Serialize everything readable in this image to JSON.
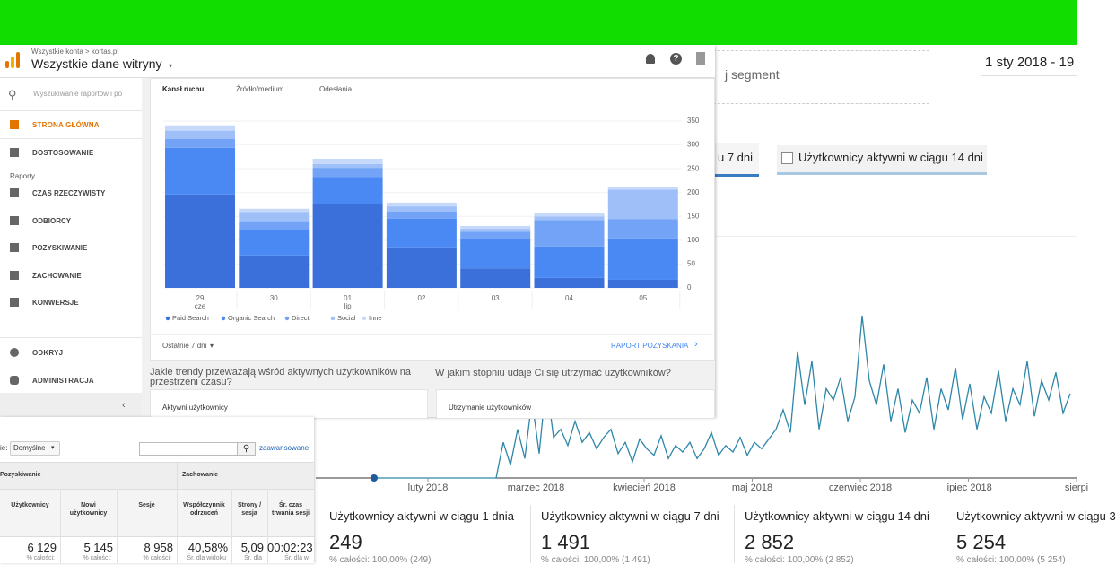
{
  "background": {
    "segment": "j segment",
    "date_range": "1 sty 2018 - 19",
    "tab_active": "u 7 dni",
    "tab_14": "Użytkownicy aktywni w ciągu 14 dni"
  },
  "stats": [
    {
      "label": "Użytkownicy aktywni w ciągu 1 dnia",
      "value": "249",
      "sub": "% całości: 100,00% (249)"
    },
    {
      "label": "Użytkownicy aktywni w ciągu 7 dni",
      "value": "1 491",
      "sub": "% całości: 100,00% (1 491)"
    },
    {
      "label": "Użytkownicy aktywni w ciągu 14 dni",
      "value": "2 852",
      "sub": "% całości: 100,00% (2 852)"
    },
    {
      "label": "Użytkownicy aktywni w ciągu 3",
      "value": "5 254",
      "sub": "% całości: 100,00% (5 254)"
    }
  ],
  "ga_header": {
    "breadcrumb": "Wszystkie konta > kortas.pl",
    "property": "Wszystkie dane witryny"
  },
  "sidebar": {
    "search": "Wyszukiwanie raportów i po",
    "home": "STRONA GŁÓWNA",
    "customize": "DOSTOSOWANIE",
    "reports": "Raporty",
    "items": [
      "CZAS RZECZYWISTY",
      "ODBIORCY",
      "POZYSKIWANIE",
      "ZACHOWANIE",
      "KONWERSJE"
    ],
    "discover": "ODKRYJ",
    "admin": "ADMINISTRACJA"
  },
  "card": {
    "tabs": [
      "Kanał ruchu",
      "Źródło/medium",
      "Odesłania"
    ],
    "period": "Ostatnie 7 dni",
    "report_link": "RAPORT POZYSKANIA"
  },
  "questions": {
    "q1": "Jakie trendy przeważają wśród aktywnych użytkowników na przestrzeni czasu?",
    "q2": "W jakim stopniu udaje Ci się utrzymać użytkowników?",
    "card1": "Aktywni użytkownicy",
    "card2": "Utrzymanie użytkowników"
  },
  "table": {
    "view_label": "ie:",
    "view_value": "Domyślne",
    "advanced": "zaawansowane",
    "group1": "Pozyskiwanie",
    "group2": "Zachowanie",
    "headers": [
      "Użytkownicy",
      "Nowi użytkownicy",
      "Sesje",
      "Współczynnik odrzuceń",
      "Strony / sesja",
      "Śr. czas trwania sesji"
    ],
    "values": [
      "6 129",
      "5 145",
      "8 958",
      "40,58%",
      "5,09",
      "00:02:23"
    ],
    "subs": [
      "% całości:",
      "% całości:",
      "% całości:",
      "Śr. dla widoku",
      "Śr. dla",
      "Śr. dla w"
    ]
  },
  "chart_data": [
    {
      "type": "stacked-bar",
      "categories": [
        "29",
        "30",
        "01",
        "02",
        "03",
        "04",
        "05"
      ],
      "month_labels": [
        "cze",
        null,
        "lip",
        null,
        null,
        null,
        null
      ],
      "series": [
        {
          "name": "Paid Search",
          "color": "#3b6fd9",
          "values": [
            196,
            68,
            175,
            85,
            41,
            21,
            17
          ]
        },
        {
          "name": "Organic Search",
          "color": "#4a89f3",
          "values": [
            98,
            53,
            58,
            60,
            62,
            66,
            87
          ]
        },
        {
          "name": "Direct",
          "color": "#73a3f6",
          "values": [
            19,
            19,
            19,
            15,
            15,
            55,
            40
          ]
        },
        {
          "name": "Social",
          "color": "#9fbff8",
          "values": [
            17,
            19,
            8,
            11,
            6,
            8,
            62
          ]
        },
        {
          "name": "Inne",
          "color": "#c6d9fb",
          "values": [
            11,
            7,
            11,
            8,
            6,
            8,
            6
          ]
        }
      ],
      "ylim": [
        0,
        350
      ],
      "yticks": [
        0,
        50,
        100,
        150,
        200,
        250,
        300,
        350
      ]
    },
    {
      "type": "line",
      "color": "#2e87a8",
      "xtick_labels": [
        "luty 2018",
        "marzec 2018",
        "kwiecień 2018",
        "maj 2018",
        "czerwiec 2018",
        "lipiec 2018",
        "sierpi"
      ],
      "ylim": [
        0,
        100
      ],
      "values": [
        0,
        0,
        0,
        0,
        0,
        0,
        0,
        0,
        0,
        0,
        0,
        0,
        0,
        0,
        0,
        0,
        0,
        0,
        22,
        8,
        30,
        12,
        48,
        15,
        60,
        25,
        30,
        20,
        35,
        22,
        28,
        18,
        25,
        30,
        15,
        22,
        10,
        24,
        18,
        14,
        26,
        12,
        20,
        16,
        22,
        12,
        18,
        28,
        14,
        20,
        16,
        25,
        14,
        22,
        18,
        24,
        30,
        42,
        28,
        78,
        45,
        72,
        30,
        55,
        48,
        62,
        35,
        50,
        100,
        60,
        45,
        70,
        35,
        55,
        28,
        48,
        40,
        62,
        30,
        55,
        42,
        68,
        36,
        58,
        30,
        50,
        40,
        66,
        35,
        55,
        45,
        72,
        38,
        60,
        48,
        65,
        40,
        52
      ]
    }
  ]
}
